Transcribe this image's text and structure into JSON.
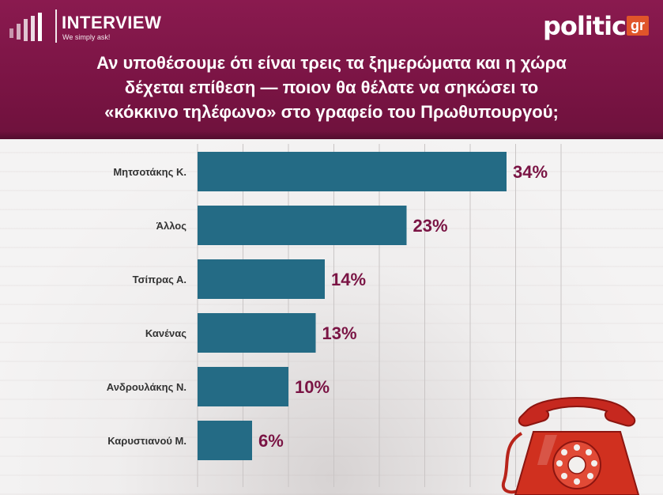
{
  "brand": {
    "title": "INTERVIEW",
    "tagline": "We simply ask!"
  },
  "logo": {
    "main": "politic",
    "suffix": "gr",
    "accent_color": "#e0552a"
  },
  "question": {
    "lines": [
      "Αν υποθέσουμε ότι είναι τρεις τα ξημερώματα και η χώρα",
      "δέχεται επίθεση — ποιον θα θέλατε να σηκώσει το",
      "«κόκκινο τηλέφωνο» στο γραφείο του Πρωθυπουργού;"
    ]
  },
  "colors": {
    "header": "#7a1444",
    "bar": "#246b85",
    "value_text": "#7a1444"
  },
  "illustration": {
    "icon": "red-rotary-telephone-icon"
  },
  "chart_data": {
    "type": "bar",
    "orientation": "horizontal",
    "categories": [
      "Μητσοτάκης Κ.",
      "Άλλος",
      "Τσίπρας Α.",
      "Κανένας",
      "Ανδρουλάκης Ν.",
      "Καρυστιανού Μ."
    ],
    "values": [
      34,
      23,
      14,
      13,
      10,
      6
    ],
    "value_labels": [
      "34%",
      "23%",
      "14%",
      "13%",
      "10%",
      "6%"
    ],
    "unit": "%",
    "xlim": [
      0,
      40
    ],
    "grid": true,
    "legend": "none"
  }
}
